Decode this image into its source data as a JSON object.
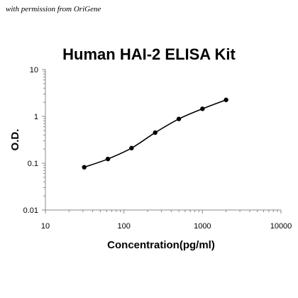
{
  "watermark": "with permission from OriGene",
  "chart_data": {
    "type": "scatter",
    "title": "Human HAI-2 ELISA Kit",
    "xlabel": "Concentration(pg/ml)",
    "ylabel": "O.D.",
    "xscale": "log",
    "yscale": "log",
    "xlim": [
      10,
      10000
    ],
    "ylim": [
      0.01,
      10
    ],
    "x_ticks": [
      "10",
      "100",
      "1000",
      "10000"
    ],
    "y_ticks": [
      "0.01",
      "0.1",
      "1",
      "10"
    ],
    "grid": false,
    "legend": "none",
    "series": [
      {
        "x": [
          31.25,
          62.5,
          125,
          250,
          500,
          1000,
          2000
        ],
        "y": [
          0.082,
          0.123,
          0.21,
          0.45,
          0.88,
          1.45,
          2.25
        ],
        "color": "#000000",
        "fit_line": true
      }
    ]
  }
}
